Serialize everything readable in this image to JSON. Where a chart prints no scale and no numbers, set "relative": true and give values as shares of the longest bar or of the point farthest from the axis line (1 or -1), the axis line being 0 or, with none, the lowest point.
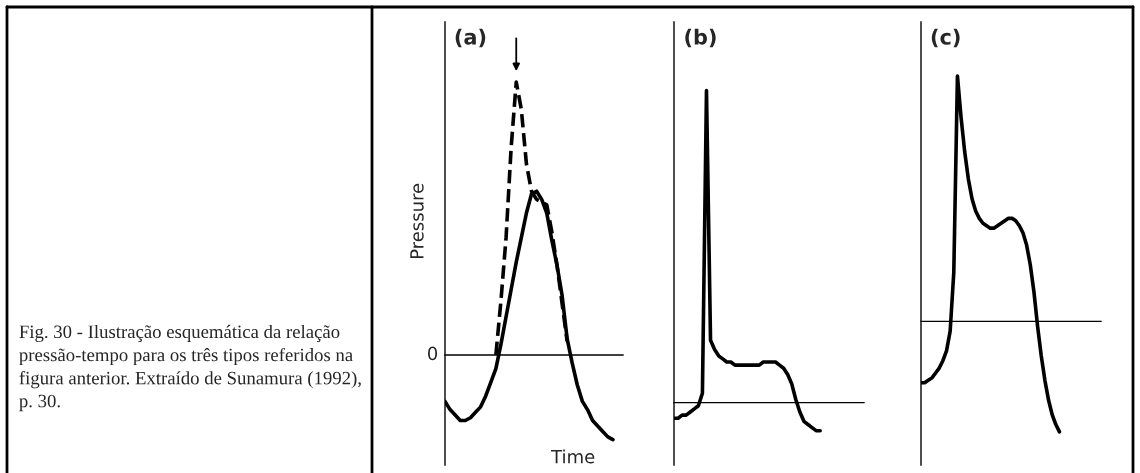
{
  "chart_data": [
    {
      "type": "line",
      "title": "(a)",
      "xlabel": "Time",
      "ylabel": "Pressure",
      "relative": true,
      "annotations": [
        "Fig. 30 - Ilustração esquemática da relação pressão-tempo para os três tipos referidos na figura anterior. Extraído de Sunamura (1992), p. 30.",
        "0"
      ],
      "categories": [
        null,
        null,
        null,
        null,
        null,
        null,
        null,
        null,
        null,
        null,
        null,
        null,
        null,
        null,
        null,
        null,
        null,
        null,
        null,
        null,
        null,
        null,
        null,
        null,
        null,
        null,
        null,
        null,
        null,
        null,
        null,
        null,
        null,
        null
      ],
      "series": [
        {
          "color": "#000000",
          "line_style": "solid",
          "values": [
            -0.17,
            -0.2,
            -0.22,
            -0.24,
            -0.24,
            -0.23,
            -0.21,
            -0.19,
            -0.15,
            -0.1,
            -0.05,
            0.04,
            0.14,
            0.24,
            0.34,
            0.43,
            0.52,
            0.59,
            0.6,
            0.57,
            0.52,
            0.42,
            0.33,
            0.22,
            0.06,
            -0.03,
            -0.11,
            -0.17,
            -0.2,
            -0.24,
            -0.26,
            -0.28,
            -0.3,
            -0.31
          ]
        },
        {
          "color": "#000000",
          "line_style": "dashed",
          "values": [
            null,
            null,
            null,
            null,
            null,
            null,
            null,
            null,
            null,
            null,
            0,
            0.2,
            0.43,
            0.76,
            1,
            0.9,
            0.7,
            0.6,
            0.57,
            0.56,
            0.55,
            0.45,
            0.33,
            0.19,
            0.05,
            null,
            null,
            null,
            null,
            null,
            null,
            null,
            null,
            null
          ]
        }
      ]
    },
    {
      "type": "line",
      "title": "(b)",
      "relative": true,
      "categories": [
        null,
        null,
        null,
        null,
        null,
        null,
        null,
        null,
        null,
        null,
        null,
        null,
        null,
        null,
        null,
        null,
        null,
        null,
        null,
        null,
        null,
        null,
        null,
        null,
        null,
        null,
        null,
        null,
        null,
        null,
        null,
        null,
        null,
        null,
        null,
        null,
        null
      ],
      "series": [
        {
          "color": "#000000",
          "line_style": "solid",
          "values": [
            -0.05,
            -0.05,
            -0.04,
            -0.04,
            -0.03,
            -0.02,
            -0.01,
            0.03,
            1,
            0.2,
            0.17,
            0.15,
            0.14,
            0.13,
            0.13,
            0.12,
            0.12,
            0.12,
            0.12,
            0.12,
            0.12,
            0.12,
            0.13,
            0.13,
            0.13,
            0.13,
            0.12,
            0.11,
            0.09,
            0.06,
            0.01,
            -0.03,
            -0.06,
            -0.07,
            -0.08,
            -0.09,
            -0.09
          ]
        }
      ]
    },
    {
      "type": "line",
      "title": "(c)",
      "relative": true,
      "categories": [
        null,
        null,
        null,
        null,
        null,
        null,
        null,
        null,
        null,
        null,
        null,
        null,
        null,
        null,
        null,
        null,
        null,
        null,
        null,
        null,
        null,
        null,
        null,
        null,
        null,
        null,
        null,
        null,
        null,
        null,
        null,
        null,
        null,
        null,
        null,
        null,
        null,
        null,
        null
      ],
      "series": [
        {
          "color": "#000000",
          "line_style": "solid",
          "values": [
            -0.25,
            -0.25,
            -0.24,
            -0.23,
            -0.21,
            -0.19,
            -0.16,
            -0.12,
            -0.04,
            0.2,
            1,
            0.83,
            0.69,
            0.58,
            0.5,
            0.45,
            0.42,
            0.4,
            0.39,
            0.38,
            0.38,
            0.39,
            0.4,
            0.41,
            0.42,
            0.42,
            0.41,
            0.39,
            0.36,
            0.31,
            0.23,
            0.12,
            -0.02,
            -0.14,
            -0.24,
            -0.32,
            -0.38,
            -0.42,
            -0.45
          ]
        }
      ]
    }
  ]
}
